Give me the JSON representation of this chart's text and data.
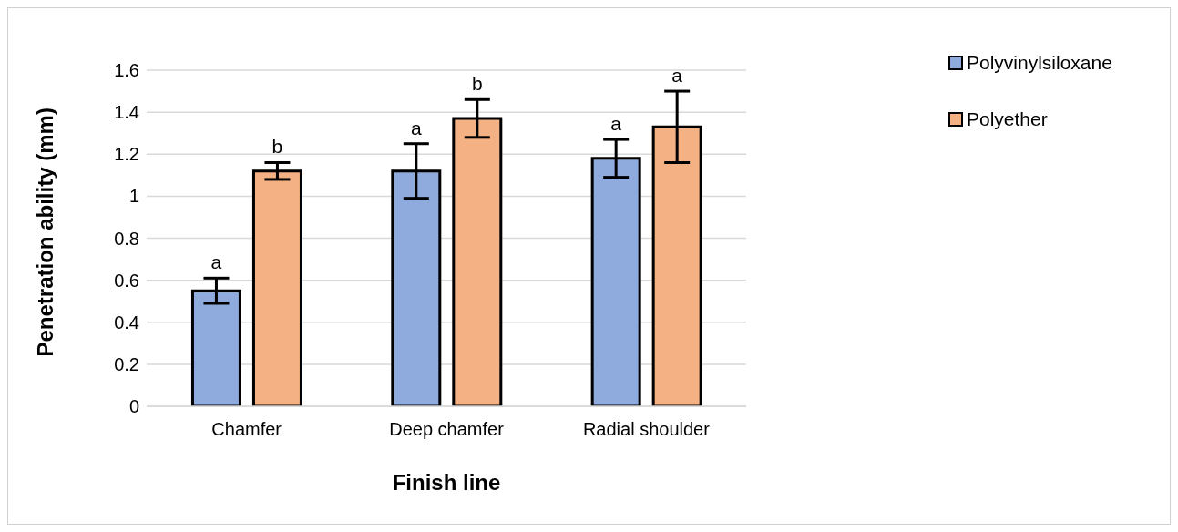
{
  "chart_data": {
    "type": "bar",
    "xlabel": "Finish line",
    "ylabel": "Penetration ability (mm)",
    "categories": [
      "Chamfer",
      "Deep chamfer",
      "Radial shoulder"
    ],
    "series": [
      {
        "name": "Polyvinylsiloxane",
        "color": "#8faadc",
        "values": [
          0.55,
          1.12,
          1.18
        ],
        "errors": [
          0.06,
          0.13,
          0.09
        ],
        "value_labels": [
          "a",
          "a",
          "a"
        ]
      },
      {
        "name": "Polyether",
        "color": "#f4b183",
        "values": [
          1.12,
          1.37,
          1.33
        ],
        "errors": [
          0.04,
          0.09,
          0.17
        ],
        "value_labels": [
          "b",
          "b",
          "a"
        ]
      }
    ],
    "ylim": [
      0,
      1.6
    ],
    "yticks": [
      0,
      0.2,
      0.4,
      0.6,
      0.8,
      1,
      1.2,
      1.4,
      1.6
    ],
    "grid": "y",
    "legend": "top right"
  }
}
